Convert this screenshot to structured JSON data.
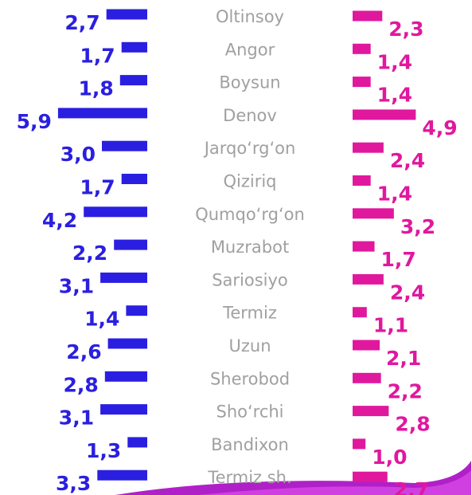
{
  "chart_data": {
    "type": "butterfly",
    "categories": [
      "Oltinsoy",
      "Angor",
      "Boysun",
      "Denov",
      "Jarqo‘rg‘on",
      "Qiziriq",
      "Qumqo‘rg‘on",
      "Muzrabot",
      "Sariosiyo",
      "Termiz",
      "Uzun",
      "Sherobod",
      "Sho‘rchi",
      "Bandixon",
      "Termiz sh."
    ],
    "series": [
      {
        "color": "#2a1fe0",
        "values": [
          2.7,
          1.7,
          1.8,
          5.9,
          3.0,
          1.7,
          4.2,
          2.2,
          3.1,
          1.4,
          2.6,
          2.8,
          3.1,
          1.3,
          3.3
        ],
        "value_labels": [
          "2,7",
          "1,7",
          "1,8",
          "5,9",
          "3,0",
          "1,7",
          "4,2",
          "2,2",
          "3,1",
          "1,4",
          "2,6",
          "2,8",
          "3,1",
          "1,3",
          "3,3"
        ]
      },
      {
        "color": "#e0189e",
        "values": [
          2.3,
          1.4,
          1.4,
          4.9,
          2.4,
          1.4,
          3.2,
          1.7,
          2.4,
          1.1,
          2.1,
          2.2,
          2.8,
          1.0,
          2.7
        ],
        "value_labels": [
          "2,3",
          "1,4",
          "1,4",
          "4,9",
          "2,4",
          "1,4",
          "3,2",
          "1,7",
          "2,4",
          "1,1",
          "2,1",
          "2,2",
          "2,8",
          "1,0",
          "2,7"
        ]
      }
    ]
  }
}
